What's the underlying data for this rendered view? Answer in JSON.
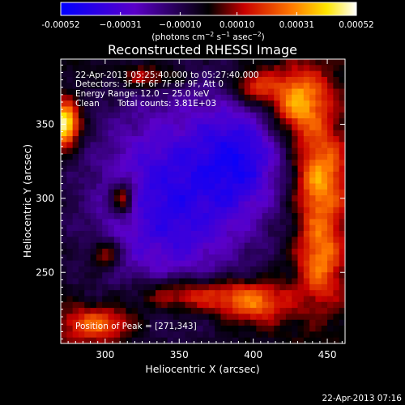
{
  "chart_data": {
    "type": "heatmap",
    "title": "Reconstructed RHESSI Image",
    "xlabel": "Heliocentric X (arcsec)",
    "ylabel": "Heliocentric Y (arcsec)",
    "xlim": [
      270,
      462
    ],
    "ylim": [
      202,
      394
    ],
    "xticks": [
      300,
      350,
      400,
      450
    ],
    "yticks": [
      250,
      300,
      350
    ],
    "xtick_labels": [
      "300",
      "350",
      "400",
      "450"
    ],
    "ytick_labels": [
      "250",
      "300",
      "350"
    ],
    "colorbar": {
      "range": [
        -0.00052,
        0.00052
      ],
      "tick_values": [
        -0.00052,
        -0.00031,
        -0.0001,
        0.0001,
        0.00031,
        0.00052
      ],
      "tick_labels": [
        "-0.00052",
        "−0.00031",
        "−0.00010",
        "0.00010",
        "0.00031",
        "0.00052"
      ],
      "unit_prefix": "(photons cm",
      "unit_sup1": "−2",
      "unit_mid": " s",
      "unit_sup2": "−1",
      "unit_mid2": " asec",
      "unit_sup3": "−2",
      "unit_suffix": ")"
    },
    "annotations": {
      "time_range": "22-Apr-2013 05:25:40.000 to 05:27:40.000",
      "detectors": "Detectors: 3F 5F 6F 7F 8F 9F, Att 0",
      "energy": "Energy Range: 12.0 − 25.0 keV",
      "algorithm": "Clean",
      "counts": "Total counts: 3.81E+03",
      "peak": "Position of Peak = [271,343]"
    },
    "peak_position": [
      271,
      343
    ],
    "total_counts": 3810,
    "energy_range_kev": [
      12.0,
      25.0
    ],
    "grid": false,
    "colormap": "blue-purple-black-red-yellow-white (RHESSI std 5)"
  },
  "footer_timestamp": "22-Apr-2013 07:16"
}
